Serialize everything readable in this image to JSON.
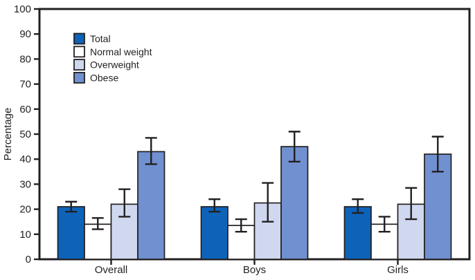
{
  "chart_data": {
    "type": "bar",
    "title": "",
    "xlabel": "",
    "ylabel": "Percentage",
    "ylim": [
      0,
      100
    ],
    "ytick_step": 10,
    "grid": false,
    "error_bars": true,
    "legend_position": "upper-left-inside",
    "categories": [
      "Overall",
      "Boys",
      "Girls"
    ],
    "series": [
      {
        "name": "Total",
        "color": "#0d63b8",
        "values": [
          21,
          21,
          21
        ],
        "ci_low": [
          19,
          19,
          18.5
        ],
        "ci_high": [
          23,
          24,
          24
        ]
      },
      {
        "name": "Normal weight",
        "color": "#ffffff",
        "values": [
          14,
          13.5,
          14
        ],
        "ci_low": [
          12,
          11,
          11
        ],
        "ci_high": [
          16.5,
          16,
          17
        ]
      },
      {
        "name": "Overweight",
        "color": "#cfd8ef",
        "values": [
          22,
          22.5,
          22
        ],
        "ci_low": [
          17,
          15,
          16
        ],
        "ci_high": [
          28,
          30.5,
          28.5
        ]
      },
      {
        "name": "Obese",
        "color": "#7090d0",
        "values": [
          43,
          45,
          42
        ],
        "ci_low": [
          38,
          39,
          35
        ],
        "ci_high": [
          48.5,
          51,
          49
        ]
      }
    ],
    "colors": {
      "outline": "#231f20",
      "error_bar": "#231f20",
      "text": "#231f20",
      "background": "#ffffff"
    }
  }
}
